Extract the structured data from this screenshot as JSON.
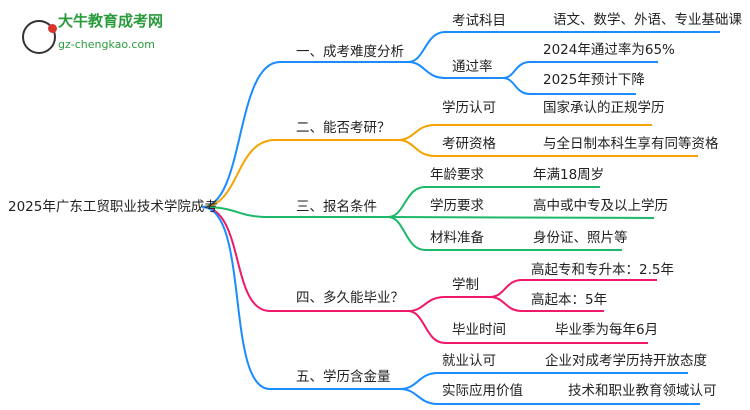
{
  "logo": {
    "name": "大牛教育成考网",
    "url": "gz-chengkao.com",
    "mark": "大牛"
  },
  "colors": {
    "branch1": "#1a8cff",
    "branch2": "#f5a300",
    "branch3": "#1db86a",
    "branch4": "#f0186a",
    "branch5": "#1a8cff"
  },
  "root": "2025年广东工贸职业技术学院成考",
  "branches": [
    {
      "label": "一、成考难度分析",
      "children": [
        {
          "label": "考试科目",
          "value": "语文、数学、外语、专业基础课"
        },
        {
          "label": "通过率",
          "values": [
            "2024年通过率为65%",
            "2025年预计下降"
          ]
        }
      ]
    },
    {
      "label": "二、能否考研？",
      "children": [
        {
          "label": "学历认可",
          "value": "国家承认的正规学历"
        },
        {
          "label": "考研资格",
          "value": "与全日制本科生享有同等资格"
        }
      ]
    },
    {
      "label": "三、报名条件",
      "children": [
        {
          "label": "年龄要求",
          "value": "年满18周岁"
        },
        {
          "label": "学历要求",
          "value": "高中或中专及以上学历"
        },
        {
          "label": "材料准备",
          "value": "身份证、照片等"
        }
      ]
    },
    {
      "label": "四、多久能毕业？",
      "children": [
        {
          "label": "学制",
          "values": [
            "高起专和专升本：2.5年",
            "高起本：5年"
          ]
        },
        {
          "label": "毕业时间",
          "value": "毕业季为每年6月"
        }
      ]
    },
    {
      "label": "五、学历含金量",
      "children": [
        {
          "label": "就业认可",
          "value": "企业对成考学历持开放态度"
        },
        {
          "label": "实际应用价值",
          "value": "技术和职业教育领域认可"
        }
      ]
    }
  ]
}
